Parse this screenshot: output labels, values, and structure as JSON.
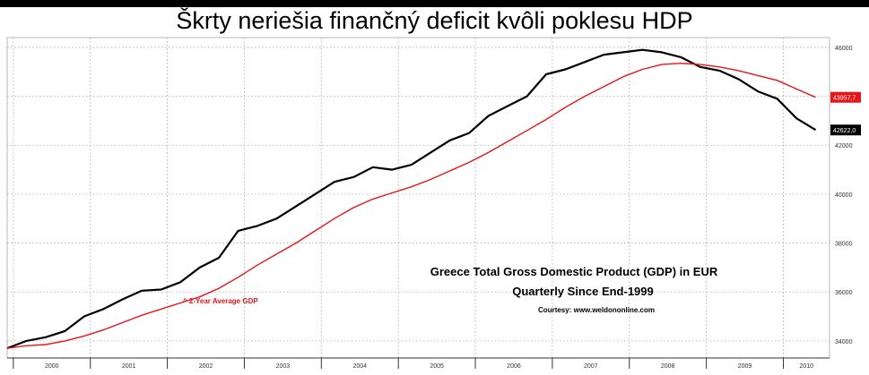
{
  "slide_title": "Škrty neriešia finančný deficit kvôli poklesu HDP",
  "chart_data": {
    "type": "line",
    "title": "Greece Total Gross Domestic Product (GDP) in EUR",
    "subtitle": "Quarterly Since End-1999",
    "credit": "Courtesy: www.weldononline.com",
    "annotation": "^ 2-Year Average GDP",
    "x_ticks": [
      "2000",
      "2001",
      "2002",
      "2003",
      "2004",
      "2005",
      "2006",
      "2007",
      "2008",
      "2009",
      "2010"
    ],
    "y_ticks": [
      34000,
      36000,
      38000,
      40000,
      42000,
      44000,
      46000
    ],
    "ylim": [
      33300,
      46400
    ],
    "xlim": [
      1999.92,
      2010.6
    ],
    "grid": true,
    "last_value_labels": [
      "43957,7",
      "42622,0"
    ],
    "series": [
      {
        "color": "#000000",
        "x": [
          1999.92,
          2000.17,
          2000.42,
          2000.67,
          2000.92,
          2001.17,
          2001.42,
          2001.67,
          2001.92,
          2002.17,
          2002.42,
          2002.67,
          2002.92,
          2003.17,
          2003.42,
          2003.67,
          2003.92,
          2004.17,
          2004.42,
          2004.67,
          2004.92,
          2005.17,
          2005.42,
          2005.67,
          2005.92,
          2006.17,
          2006.42,
          2006.67,
          2006.92,
          2007.17,
          2007.42,
          2007.67,
          2007.92,
          2008.17,
          2008.42,
          2008.67,
          2008.92,
          2009.17,
          2009.42,
          2009.67,
          2009.92,
          2010.17,
          2010.42
        ],
        "values": [
          33700,
          34000,
          34150,
          34400,
          35000,
          35300,
          35700,
          36050,
          36100,
          36400,
          37000,
          37400,
          38500,
          38700,
          39000,
          39500,
          40000,
          40500,
          40700,
          41100,
          41000,
          41200,
          41700,
          42200,
          42500,
          43200,
          43600,
          44000,
          44900,
          45100,
          45400,
          45700,
          45800,
          45900,
          45800,
          45600,
          45200,
          45050,
          44700,
          44200,
          43900,
          43100,
          42622
        ]
      },
      {
        "color": "#e8141a",
        "x": [
          1999.92,
          2000.17,
          2000.42,
          2000.67,
          2000.92,
          2001.17,
          2001.42,
          2001.67,
          2001.92,
          2002.17,
          2002.42,
          2002.67,
          2002.92,
          2003.17,
          2003.42,
          2003.67,
          2003.92,
          2004.17,
          2004.42,
          2004.67,
          2004.92,
          2005.17,
          2005.42,
          2005.67,
          2005.92,
          2006.17,
          2006.42,
          2006.67,
          2006.92,
          2007.17,
          2007.42,
          2007.67,
          2007.92,
          2008.17,
          2008.42,
          2008.67,
          2008.92,
          2009.17,
          2009.42,
          2009.67,
          2009.92,
          2010.17,
          2010.42
        ],
        "values": [
          33700,
          33800,
          33850,
          34000,
          34200,
          34450,
          34750,
          35050,
          35300,
          35550,
          35800,
          36150,
          36600,
          37100,
          37550,
          38000,
          38500,
          39000,
          39450,
          39800,
          40050,
          40300,
          40600,
          40950,
          41300,
          41700,
          42150,
          42600,
          43050,
          43550,
          44000,
          44400,
          44800,
          45100,
          45300,
          45350,
          45300,
          45200,
          45050,
          44850,
          44650,
          44300,
          43958
        ]
      }
    ]
  }
}
